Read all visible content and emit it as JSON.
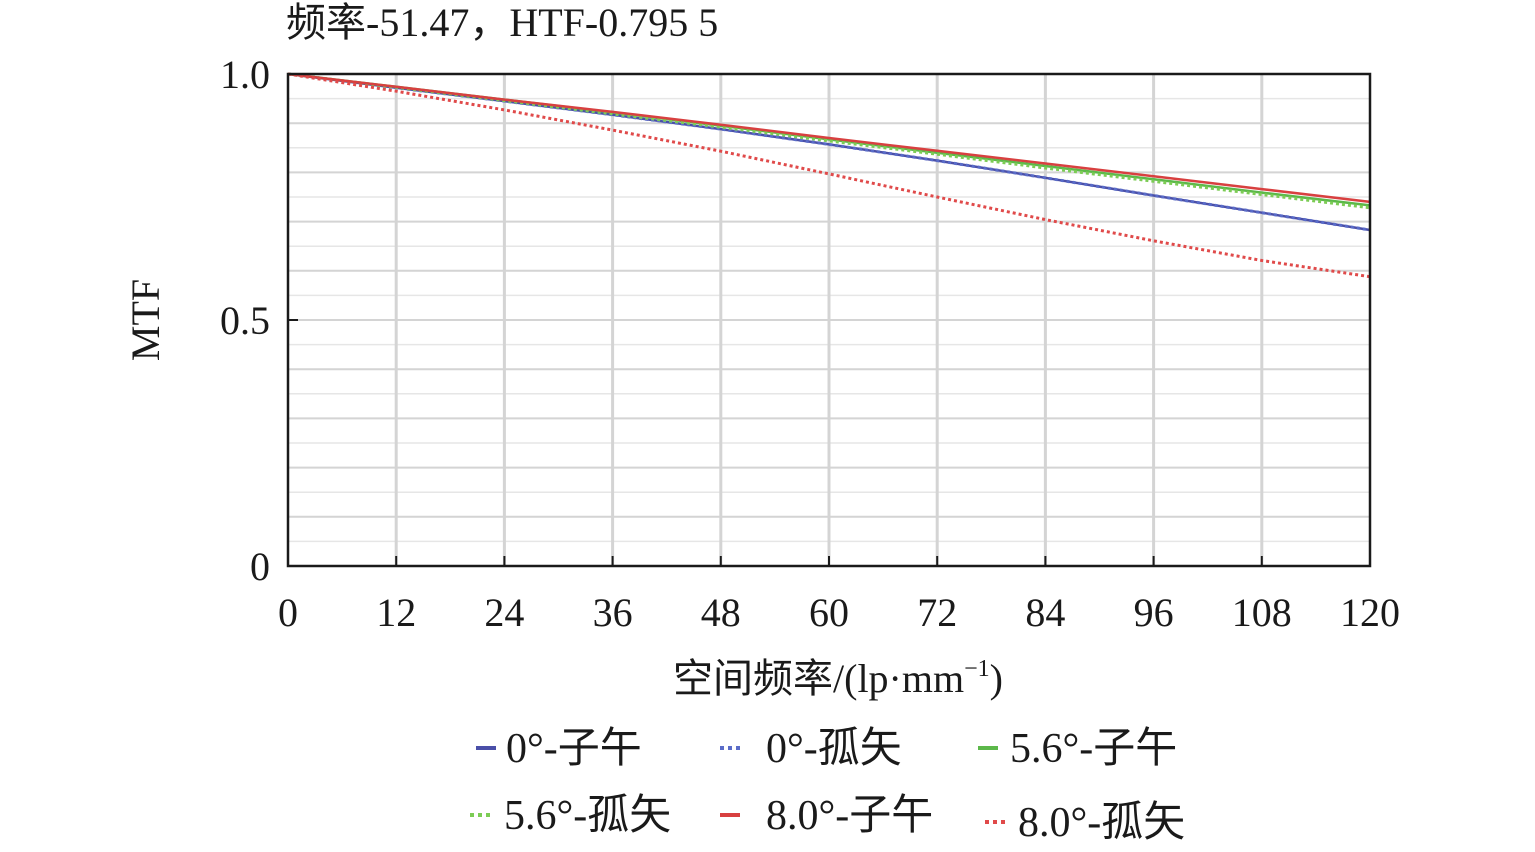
{
  "chart_data": {
    "type": "line",
    "title": "频率-51.47，HTF-0.795 5",
    "xlabel": "空间频率/(lp·mm",
    "xlabel_sup": "−1",
    "xlabel_close": ")",
    "ylabel": "MTF",
    "xlim": [
      0,
      120
    ],
    "ylim": [
      0,
      1.0
    ],
    "x_ticks": [
      0,
      12,
      24,
      36,
      48,
      60,
      72,
      84,
      96,
      108,
      120
    ],
    "y_ticks": [
      0,
      0.5,
      1.0
    ],
    "y_tick_labels": [
      "0",
      "0.5",
      "1.0"
    ],
    "grid": true,
    "legend_position": "bottom",
    "series": [
      {
        "name": "0°-子午",
        "color": "#4a4fa8",
        "style": "solid",
        "x": [
          0,
          12,
          24,
          36,
          48,
          60,
          72,
          84,
          96,
          108,
          120
        ],
        "y": [
          1.0,
          0.972,
          0.945,
          0.917,
          0.888,
          0.857,
          0.824,
          0.789,
          0.753,
          0.718,
          0.683
        ]
      },
      {
        "name": "0°-孤矢",
        "color": "#5a6cc8",
        "style": "dotted",
        "x": [
          0,
          12,
          24,
          36,
          48,
          60,
          72,
          84,
          96,
          108,
          120
        ],
        "y": [
          1.0,
          0.972,
          0.945,
          0.917,
          0.888,
          0.857,
          0.824,
          0.789,
          0.753,
          0.718,
          0.683
        ]
      },
      {
        "name": "5.6°-子午",
        "color": "#5cb84a",
        "style": "solid",
        "x": [
          0,
          12,
          24,
          36,
          48,
          60,
          72,
          84,
          96,
          108,
          120
        ],
        "y": [
          1.0,
          0.974,
          0.948,
          0.922,
          0.895,
          0.867,
          0.84,
          0.813,
          0.786,
          0.759,
          0.733
        ]
      },
      {
        "name": "5.6°-孤矢",
        "color": "#7ccc55",
        "style": "dotted",
        "x": [
          0,
          12,
          24,
          36,
          48,
          60,
          72,
          84,
          96,
          108,
          120
        ],
        "y": [
          1.0,
          0.973,
          0.946,
          0.919,
          0.892,
          0.864,
          0.837,
          0.809,
          0.782,
          0.755,
          0.728
        ]
      },
      {
        "name": "8.0°-子午",
        "color": "#d84040",
        "style": "solid",
        "x": [
          0,
          12,
          24,
          36,
          48,
          60,
          72,
          84,
          96,
          108,
          120
        ],
        "y": [
          1.0,
          0.974,
          0.948,
          0.923,
          0.897,
          0.87,
          0.844,
          0.818,
          0.792,
          0.766,
          0.74
        ]
      },
      {
        "name": "8.0°-孤矢",
        "color": "#e04a4a",
        "style": "dotted",
        "x": [
          0,
          12,
          24,
          36,
          48,
          60,
          72,
          84,
          96,
          108,
          120
        ],
        "y": [
          1.0,
          0.965,
          0.927,
          0.886,
          0.843,
          0.797,
          0.75,
          0.704,
          0.661,
          0.621,
          0.588
        ]
      }
    ]
  }
}
